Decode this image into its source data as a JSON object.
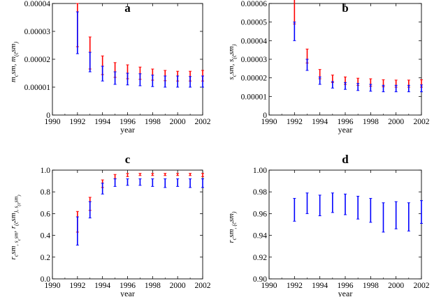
{
  "colors": {
    "red": "#ff0000",
    "blue": "#0000ff",
    "axis": "#000000"
  },
  "chart_data": [
    {
      "type": "errorbar",
      "title": "a",
      "xlabel": "year",
      "ylabel": "m_{c^{sm}}, m_{(\\tilde{c}^{sm})}",
      "xlim": [
        1990,
        2002
      ],
      "ylim": [
        0,
        4e-05
      ],
      "x_ticks": [
        "1990",
        "1992",
        "1994",
        "1996",
        "1998",
        "2000",
        "2002"
      ],
      "y_ticks": [
        "0",
        "0.00001",
        "0.00002",
        "0.00003",
        "0.00004"
      ],
      "x": [
        1992,
        1993,
        1994,
        1995,
        1996,
        1997,
        1998,
        1999,
        2000,
        2001,
        2002
      ],
      "series": [
        {
          "color": "red",
          "low": [
            2.45e-05,
            1.65e-05,
            1.45e-05,
            1.35e-05,
            1.3e-05,
            1.28e-05,
            1.25e-05,
            1.23e-05,
            1.22e-05,
            1.22e-05,
            1.22e-05
          ],
          "high": [
            4e-05,
            2.8e-05,
            2.12e-05,
            1.88e-05,
            1.8e-05,
            1.72e-05,
            1.65e-05,
            1.6e-05,
            1.57e-05,
            1.57e-05,
            1.6e-05
          ]
        },
        {
          "color": "blue",
          "low": [
            2.2e-05,
            1.55e-05,
            1.22e-05,
            1.1e-05,
            1.08e-05,
            1.05e-05,
            1.02e-05,
            1e-05,
            1e-05,
            1e-05,
            1e-05
          ],
          "high": [
            3.7e-05,
            2.25e-05,
            1.75e-05,
            1.55e-05,
            1.5e-05,
            1.48e-05,
            1.43e-05,
            1.4e-05,
            1.4e-05,
            1.38e-05,
            1.4e-05
          ]
        }
      ]
    },
    {
      "type": "errorbar",
      "title": "b",
      "xlabel": "year",
      "ylabel": "s_{c^{sm}}, s_{(\\tilde{c}^{sm})}",
      "xlim": [
        1990,
        2002
      ],
      "ylim": [
        0,
        6e-05
      ],
      "x_ticks": [
        "1990",
        "1992",
        "1994",
        "1996",
        "1998",
        "2000",
        "2002"
      ],
      "y_ticks": [
        "0",
        "0.00001",
        "0.00002",
        "0.00003",
        "0.00004",
        "0.00005",
        "0.00006"
      ],
      "x": [
        1992,
        1993,
        1994,
        1995,
        1996,
        1997,
        1998,
        1999,
        2000,
        2001,
        2002
      ],
      "series": [
        {
          "color": "red",
          "low": [
            4.9e-05,
            2.8e-05,
            1.95e-05,
            1.75e-05,
            1.65e-05,
            1.6e-05,
            1.55e-05,
            1.52e-05,
            1.5e-05,
            1.5e-05,
            1.5e-05
          ],
          "high": [
            6.4e-05,
            3.55e-05,
            2.45e-05,
            2.15e-05,
            2.05e-05,
            1.98e-05,
            1.95e-05,
            1.9e-05,
            1.88e-05,
            1.88e-05,
            1.9e-05
          ]
        },
        {
          "color": "blue",
          "low": [
            4e-05,
            2.4e-05,
            1.65e-05,
            1.45e-05,
            1.38e-05,
            1.32e-05,
            1.28e-05,
            1.25e-05,
            1.25e-05,
            1.25e-05,
            1.25e-05
          ],
          "high": [
            5e-05,
            3e-05,
            2.05e-05,
            1.8e-05,
            1.75e-05,
            1.7e-05,
            1.65e-05,
            1.6e-05,
            1.6e-05,
            1.6e-05,
            1.62e-05
          ]
        }
      ]
    },
    {
      "type": "errorbar",
      "title": "c",
      "xlabel": "year",
      "ylabel": "r_{c^{sm}, s_{c^{sm}}}, r_{(\\tilde{c}^{sm}), s_{(\\tilde{c}^{sm})}}",
      "xlim": [
        1990,
        2002
      ],
      "ylim": [
        0,
        1.0
      ],
      "x_ticks": [
        "1990",
        "1992",
        "1994",
        "1996",
        "1998",
        "2000",
        "2002"
      ],
      "y_ticks": [
        "0.0",
        "0.2",
        "0.4",
        "0.6",
        "0.8",
        "1.0"
      ],
      "x": [
        1992,
        1993,
        1994,
        1995,
        1996,
        1997,
        1998,
        1999,
        2000,
        2001,
        2002
      ],
      "series": [
        {
          "color": "red",
          "low": [
            0.43,
            0.63,
            0.84,
            0.92,
            0.94,
            0.95,
            0.95,
            0.95,
            0.95,
            0.95,
            0.94
          ],
          "high": [
            0.62,
            0.75,
            0.91,
            0.96,
            0.97,
            0.97,
            0.97,
            0.97,
            0.97,
            0.97,
            0.97
          ]
        },
        {
          "color": "blue",
          "low": [
            0.31,
            0.56,
            0.78,
            0.85,
            0.86,
            0.86,
            0.85,
            0.84,
            0.85,
            0.84,
            0.84
          ],
          "high": [
            0.57,
            0.71,
            0.88,
            0.92,
            0.92,
            0.92,
            0.92,
            0.92,
            0.92,
            0.92,
            0.92
          ]
        }
      ]
    },
    {
      "type": "errorbar",
      "title": "d",
      "xlabel": "year",
      "ylabel": "r_{c^{sm}, (\\tilde{c}^{sm})}",
      "xlim": [
        1990,
        2002
      ],
      "ylim": [
        0.9,
        1.0
      ],
      "x_ticks": [
        "1990",
        "1992",
        "1994",
        "1996",
        "1998",
        "2000",
        "2002"
      ],
      "y_ticks": [
        "0.90",
        "0.92",
        "0.94",
        "0.96",
        "0.98",
        "1.00"
      ],
      "x": [
        1992,
        1993,
        1994,
        1995,
        1996,
        1997,
        1998,
        1999,
        2000,
        2001,
        2002
      ],
      "series": [
        {
          "color": "blue",
          "low": [
            0.953,
            0.96,
            0.958,
            0.961,
            0.959,
            0.955,
            0.952,
            0.943,
            0.946,
            0.944,
            0.951
          ],
          "high": [
            0.974,
            0.979,
            0.977,
            0.979,
            0.978,
            0.976,
            0.974,
            0.97,
            0.971,
            0.97,
            0.972
          ]
        }
      ]
    }
  ]
}
